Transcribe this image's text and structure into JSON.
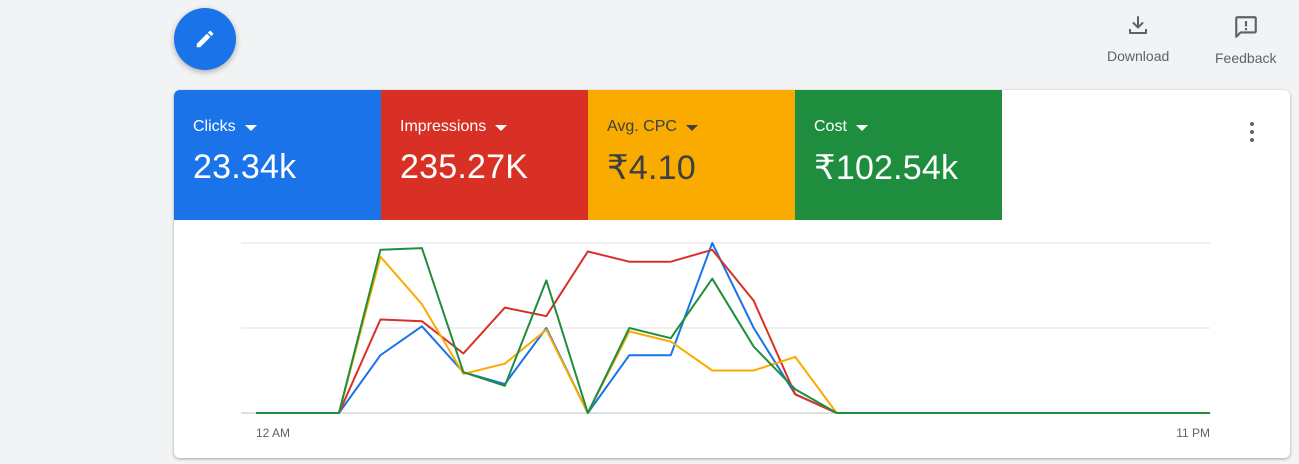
{
  "toolbar": {
    "download_label": "Download",
    "feedback_label": "Feedback"
  },
  "metrics": [
    {
      "label": "Clicks",
      "value": "23.34k",
      "color": "#1a73e8"
    },
    {
      "label": "Impressions",
      "value": "235.27K",
      "color": "#d93025"
    },
    {
      "label": "Avg. CPC",
      "value": "₹4.10",
      "color": "#f9ab00"
    },
    {
      "label": "Cost",
      "value": "₹102.54k",
      "color": "#1e8e3e"
    }
  ],
  "chart_data": {
    "type": "line",
    "x_tick_labels": [
      "12 AM",
      "11 PM"
    ],
    "x": [
      0,
      1,
      2,
      3,
      4,
      5,
      6,
      7,
      8,
      9,
      10,
      11,
      12,
      13,
      14,
      15,
      16,
      17,
      18,
      19,
      20,
      21,
      22,
      23
    ],
    "ylim": [
      0,
      100
    ],
    "grid": true,
    "series": [
      {
        "color": "#1a73e8",
        "values": [
          0,
          0,
          0,
          34,
          51,
          24,
          17,
          50,
          0,
          34,
          34,
          100,
          50,
          11,
          0,
          0,
          0,
          0,
          0,
          0,
          0,
          0,
          0,
          0
        ]
      },
      {
        "color": "#d93025",
        "values": [
          0,
          0,
          0,
          55,
          54,
          35,
          62,
          57,
          95,
          89,
          89,
          96,
          66,
          11,
          0,
          0,
          0,
          0,
          0,
          0,
          0,
          0,
          0,
          0
        ]
      },
      {
        "color": "#f9ab00",
        "values": [
          0,
          0,
          0,
          92,
          64,
          23,
          29,
          49,
          0,
          48,
          42,
          25,
          25,
          33,
          0,
          0,
          0,
          0,
          0,
          0,
          0,
          0,
          0,
          0
        ]
      },
      {
        "color": "#1e8e3e",
        "values": [
          0,
          0,
          0,
          96,
          97,
          24,
          16,
          78,
          0,
          50,
          44,
          79,
          39,
          14,
          0,
          0,
          0,
          0,
          0,
          0,
          0,
          0,
          0,
          0
        ]
      }
    ]
  }
}
